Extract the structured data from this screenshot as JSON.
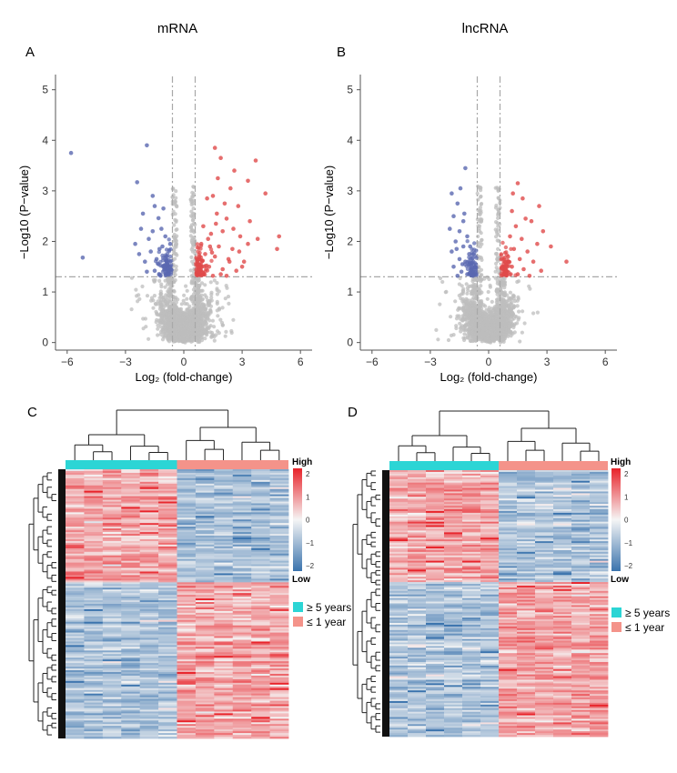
{
  "figure": {
    "panels": {
      "a": {
        "letter": "A",
        "title": "mRNA"
      },
      "b": {
        "letter": "B",
        "title": "lncRNA"
      },
      "c": {
        "letter": "C"
      },
      "d": {
        "letter": "D"
      }
    },
    "colors": {
      "gray": "#bdbdbd",
      "down": "#5a68b0",
      "up": "#e04a4a",
      "cyan": "#2cd5d5",
      "salmon": "#f4938a",
      "heat_high": "#e8232a",
      "heat_mid": "#f5f5f5",
      "heat_low": "#3a73ad",
      "guide": "#a8a8a8"
    }
  },
  "chart_data": [
    {
      "type": "scatter",
      "panel": "A",
      "title": "mRNA",
      "xlabel": "Log₂ (fold-change)",
      "ylabel": "−Log10 (P−value)",
      "xlim": [
        -6.6,
        6.6
      ],
      "ylim": [
        -0.15,
        5.3
      ],
      "xticks": [
        -6,
        -3,
        0,
        3,
        6
      ],
      "yticks": [
        0,
        1,
        2,
        3,
        4,
        5
      ],
      "thresholds": {
        "fold_change_log2": [
          -0.585,
          0.585
        ],
        "neg_log10_p": 1.3
      },
      "grid": false,
      "series": [
        {
          "group": "down",
          "color": "#5a68b0",
          "points": [
            [
              -5.8,
              3.75
            ],
            [
              -5.2,
              1.68
            ],
            [
              -1.9,
              3.9
            ],
            [
              -2.4,
              3.17
            ],
            [
              -2.1,
              2.55
            ],
            [
              -1.5,
              2.7
            ],
            [
              -1.3,
              2.46
            ],
            [
              -1.6,
              2.2
            ],
            [
              -1.8,
              2.05
            ],
            [
              -2.5,
              1.95
            ],
            [
              -1.1,
              1.9
            ],
            [
              -0.9,
              1.7
            ],
            [
              -1.3,
              1.55
            ],
            [
              -1.0,
              1.45
            ],
            [
              -1.5,
              1.42
            ],
            [
              -0.8,
              1.35
            ],
            [
              -1.2,
              1.32
            ],
            [
              -2.0,
              1.6
            ],
            [
              -1.7,
              1.8
            ],
            [
              -0.95,
              2.1
            ],
            [
              -1.15,
              2.25
            ],
            [
              -2.2,
              2.25
            ],
            [
              -1.4,
              1.65
            ],
            [
              -0.85,
              1.55
            ],
            [
              -1.9,
              1.4
            ],
            [
              -1.05,
              2.65
            ],
            [
              -1.6,
              2.9
            ],
            [
              -2.3,
              1.75
            ],
            [
              -0.7,
              1.95
            ],
            [
              -1.25,
              1.85
            ]
          ]
        },
        {
          "group": "up",
          "color": "#e04a4a",
          "points": [
            [
              1.6,
              3.85
            ],
            [
              1.9,
              3.65
            ],
            [
              3.7,
              3.6
            ],
            [
              2.6,
              3.4
            ],
            [
              3.3,
              3.2
            ],
            [
              2.4,
              3.05
            ],
            [
              4.2,
              2.95
            ],
            [
              1.2,
              2.85
            ],
            [
              1.5,
              2.9
            ],
            [
              2.8,
              2.7
            ],
            [
              1.7,
              2.55
            ],
            [
              2.2,
              2.45
            ],
            [
              3.4,
              2.4
            ],
            [
              1.0,
              2.3
            ],
            [
              2.0,
              2.2
            ],
            [
              1.4,
              2.15
            ],
            [
              2.9,
              2.1
            ],
            [
              3.8,
              2.05
            ],
            [
              0.9,
              1.95
            ],
            [
              1.8,
              1.9
            ],
            [
              2.5,
              1.85
            ],
            [
              4.8,
              1.85
            ],
            [
              1.1,
              1.75
            ],
            [
              1.6,
              1.7
            ],
            [
              2.3,
              1.65
            ],
            [
              3.1,
              1.6
            ],
            [
              0.8,
              1.55
            ],
            [
              1.3,
              1.5
            ],
            [
              2.0,
              1.45
            ],
            [
              2.7,
              1.42
            ],
            [
              1.0,
              1.38
            ],
            [
              1.9,
              1.35
            ],
            [
              0.7,
              1.33
            ],
            [
              1.5,
              1.32
            ],
            [
              2.2,
              1.32
            ],
            [
              3.3,
              1.95
            ],
            [
              4.9,
              2.1
            ],
            [
              1.25,
              2.05
            ],
            [
              2.1,
              2.75
            ],
            [
              1.75,
              3.25
            ],
            [
              0.95,
              1.62
            ],
            [
              1.45,
              1.78
            ],
            [
              2.55,
              2.25
            ],
            [
              3.0,
              1.5
            ],
            [
              1.15,
              1.45
            ],
            [
              2.35,
              1.6
            ],
            [
              0.75,
              1.45
            ],
            [
              1.65,
              2.35
            ],
            [
              2.85,
              1.8
            ],
            [
              1.35,
              1.9
            ]
          ]
        }
      ],
      "background_cloud": {
        "color": "#bdbdbd",
        "description": "non-significant transcripts"
      }
    },
    {
      "type": "scatter",
      "panel": "B",
      "title": "lncRNA",
      "xlabel": "Log₂ (fold-change)",
      "ylabel": "−Log10 (P−value)",
      "xlim": [
        -6.6,
        6.6
      ],
      "ylim": [
        -0.15,
        5.3
      ],
      "xticks": [
        -6,
        -3,
        0,
        3,
        6
      ],
      "yticks": [
        0,
        1,
        2,
        3,
        4,
        5
      ],
      "thresholds": {
        "fold_change_log2": [
          -0.585,
          0.585
        ],
        "neg_log10_p": 1.3
      },
      "grid": false,
      "series": [
        {
          "group": "down",
          "color": "#5a68b0",
          "points": [
            [
              -1.2,
              3.45
            ],
            [
              -1.9,
              2.95
            ],
            [
              -1.6,
              2.75
            ],
            [
              -1.8,
              2.5
            ],
            [
              -1.3,
              2.4
            ],
            [
              -2.0,
              2.25
            ],
            [
              -1.5,
              2.2
            ],
            [
              -1.1,
              2.1
            ],
            [
              -1.7,
              2.0
            ],
            [
              -1.3,
              1.9
            ],
            [
              -1.9,
              1.8
            ],
            [
              -1.0,
              1.75
            ],
            [
              -1.5,
              1.65
            ],
            [
              -1.2,
              1.6
            ],
            [
              -1.8,
              1.5
            ],
            [
              -0.9,
              1.45
            ],
            [
              -1.4,
              1.4
            ],
            [
              -1.1,
              1.35
            ],
            [
              -1.6,
              1.32
            ],
            [
              -0.8,
              1.32
            ],
            [
              -1.35,
              1.55
            ],
            [
              -1.65,
              1.85
            ],
            [
              -1.25,
              2.55
            ],
            [
              -1.45,
              3.05
            ],
            [
              -0.95,
              1.9
            ]
          ]
        },
        {
          "group": "up",
          "color": "#e04a4a",
          "points": [
            [
              1.5,
              3.15
            ],
            [
              2.6,
              2.7
            ],
            [
              1.2,
              2.6
            ],
            [
              1.9,
              2.45
            ],
            [
              2.2,
              2.4
            ],
            [
              1.4,
              2.3
            ],
            [
              2.8,
              2.2
            ],
            [
              1.1,
              2.1
            ],
            [
              1.7,
              2.05
            ],
            [
              2.5,
              1.95
            ],
            [
              1.3,
              1.85
            ],
            [
              2.0,
              1.8
            ],
            [
              1.0,
              1.7
            ],
            [
              1.6,
              1.65
            ],
            [
              2.3,
              1.6
            ],
            [
              3.2,
              1.9
            ],
            [
              4.0,
              1.6
            ],
            [
              1.2,
              1.5
            ],
            [
              1.8,
              1.45
            ],
            [
              2.7,
              1.42
            ],
            [
              0.9,
              1.38
            ],
            [
              1.5,
              1.35
            ],
            [
              2.1,
              1.32
            ],
            [
              1.25,
              2.95
            ],
            [
              1.75,
              2.85
            ]
          ]
        }
      ],
      "background_cloud": {
        "color": "#bdbdbd",
        "description": "non-significant transcripts"
      }
    },
    {
      "type": "heatmap",
      "panel": "C",
      "samples": 12,
      "group_sizes": [
        6,
        6
      ],
      "color_scale": {
        "ticks": [
          2,
          1,
          0,
          -1,
          -2
        ],
        "high_label": "High",
        "low_label": "Low"
      },
      "legend": [
        {
          "label": "≥ 5 years",
          "color": "#2cd5d5"
        },
        {
          "label": "≤ 1  year",
          "color": "#f4938a"
        }
      ]
    },
    {
      "type": "heatmap",
      "panel": "D",
      "samples": 12,
      "group_sizes": [
        6,
        6
      ],
      "color_scale": {
        "ticks": [
          2,
          1,
          0,
          -1,
          -2
        ],
        "high_label": "High",
        "low_label": "Low"
      },
      "legend": [
        {
          "label": "≥ 5 years",
          "color": "#2cd5d5"
        },
        {
          "label": "≤ 1  year",
          "color": "#f4938a"
        }
      ]
    }
  ]
}
